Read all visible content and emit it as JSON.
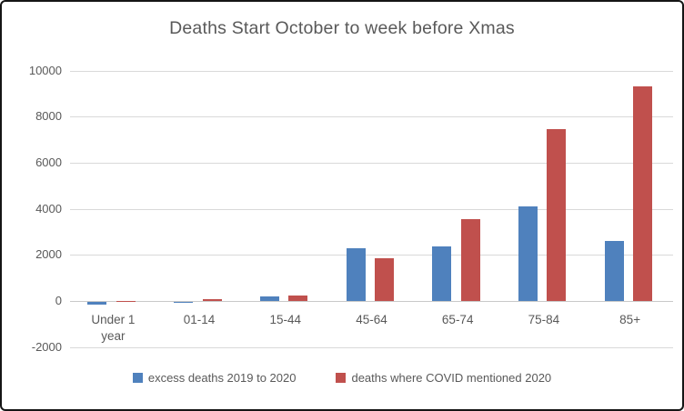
{
  "chart_data": {
    "type": "bar",
    "title": "Deaths Start October to week before Xmas",
    "categories": [
      "Under 1 year",
      "01-14",
      "15-44",
      "45-64",
      "65-74",
      "75-84",
      "85+"
    ],
    "series": [
      {
        "name": "excess deaths 2019 to 2020",
        "color": "#4F81BD",
        "values": [
          -100,
          -50,
          190,
          2270,
          2380,
          4090,
          2620
        ]
      },
      {
        "name": "deaths where COVID mentioned 2020",
        "color": "#C0504D",
        "values": [
          10,
          60,
          230,
          1870,
          3570,
          7470,
          9320
        ]
      }
    ],
    "ylim": [
      -2000,
      10000
    ],
    "yticks": [
      10000,
      8000,
      6000,
      4000,
      2000,
      0,
      -2000
    ],
    "grid": true,
    "legend_position": "bottom",
    "colors": {
      "title_text": "#595959",
      "axis_text": "#595959",
      "gridline": "#d9d9d9",
      "frame_border": "#151515",
      "background": "#ffffff"
    }
  }
}
